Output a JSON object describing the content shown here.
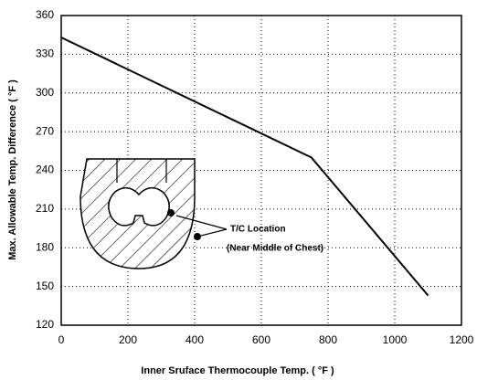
{
  "chart_data": {
    "type": "line",
    "x": [
      0,
      750,
      1100
    ],
    "values": [
      343,
      250,
      143
    ],
    "color": "#000000",
    "xlabel": "Inner Sruface Thermocouple Temp. ( °F )",
    "ylabel": "Max. Allowable Temp. Difference ( °F )",
    "xlim": [
      0,
      1200
    ],
    "xticks": [
      0,
      200,
      400,
      600,
      800,
      1000,
      1200
    ],
    "ylim": [
      120,
      360
    ],
    "yticks": [
      120,
      150,
      180,
      210,
      240,
      270,
      300,
      330,
      360
    ],
    "grid": true,
    "annotations": [
      "T/C Location",
      "(Near Middle of Chest)"
    ]
  }
}
